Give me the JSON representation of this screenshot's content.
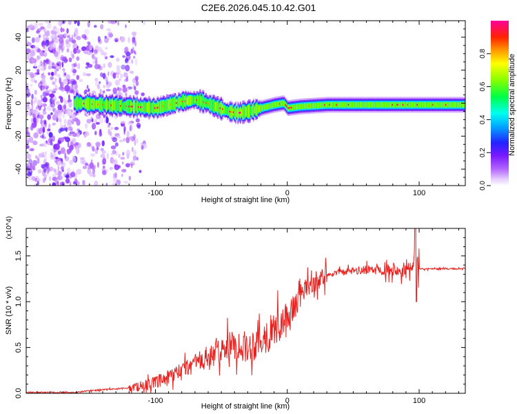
{
  "figure": {
    "title": "C2E6.2026.045.10.42.G01"
  },
  "chart_data": [
    {
      "type": "heatmap",
      "title": "C2E6.2026.045.10.42.G01",
      "xlabel": "Height of straight line (km)",
      "ylabel": "Frequency (Hz)",
      "xlim": [
        -198,
        135
      ],
      "ylim": [
        -50,
        50
      ],
      "x_ticks": [
        -100,
        0,
        100
      ],
      "y_ticks": [
        -40,
        -20,
        0,
        20,
        40
      ],
      "colorbar": {
        "label": "Normalized spectral amplitude",
        "range": [
          0,
          1
        ],
        "ticks": [
          "0.0",
          "0.2",
          "0.4",
          "0.6",
          "0.8"
        ],
        "tick_values": [
          0,
          0.2,
          0.4,
          0.6,
          0.8
        ]
      },
      "ridge_frequency": {
        "x": [
          -160,
          -140,
          -120,
          -100,
          -90,
          -80,
          -70,
          -65,
          -55,
          -45,
          -38,
          -30,
          -20,
          -10,
          -3,
          0,
          10,
          30,
          60,
          90,
          135
        ],
        "y": [
          0,
          -1,
          -2,
          -3,
          -1,
          1,
          2,
          1,
          -2,
          -5,
          -6,
          -5,
          -3,
          -1,
          0,
          -3,
          -2,
          -1,
          -1,
          -1,
          -1
        ]
      }
    },
    {
      "type": "line",
      "xlabel": "Height of straight line (km)",
      "ylabel": "SNR (10 * v/v)",
      "y_multiplier": "(x10^4)",
      "xlim": [
        -198,
        135
      ],
      "ylim": [
        0,
        1.8
      ],
      "x_ticks": [
        -100,
        0,
        100
      ],
      "y_ticks": [
        0.0,
        0.5,
        1.0,
        1.5
      ],
      "series": [
        {
          "name": "SNR",
          "color": "#e8201d",
          "x": [
            -198,
            -160,
            -150,
            -140,
            -120,
            -100,
            -90,
            -80,
            -70,
            -60,
            -50,
            -40,
            -30,
            -20,
            -10,
            0,
            10,
            20,
            30,
            40,
            50,
            60,
            70,
            80,
            90,
            96,
            98,
            100,
            110,
            120,
            135
          ],
          "y": [
            0.01,
            0.01,
            0.03,
            0.04,
            0.06,
            0.12,
            0.18,
            0.25,
            0.35,
            0.38,
            0.5,
            0.55,
            0.52,
            0.6,
            0.72,
            0.82,
            1.1,
            1.22,
            1.3,
            1.32,
            1.34,
            1.35,
            1.36,
            1.36,
            1.37,
            1.36,
            1.37,
            1.36,
            1.36,
            1.36,
            1.36
          ]
        }
      ]
    }
  ]
}
